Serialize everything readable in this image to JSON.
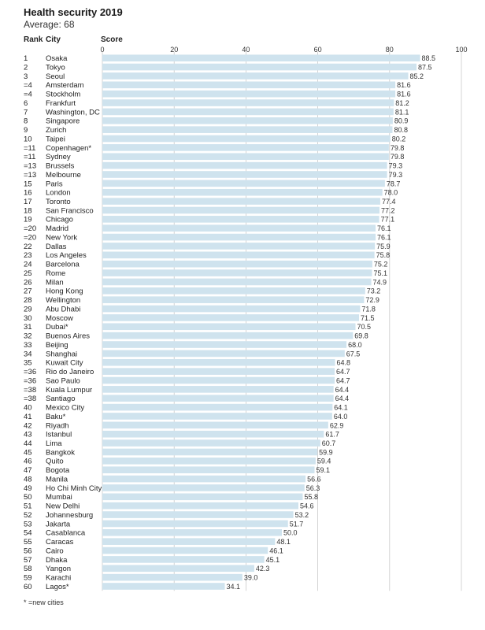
{
  "header": {
    "rank_label": "Rank",
    "city_label": "City",
    "score_label": "Score"
  },
  "footnote": "* =new cities",
  "colors": {
    "bar": "#cfe3ee",
    "grid": "#c9c9c9"
  },
  "chart_data": {
    "type": "bar",
    "orientation": "horizontal",
    "title": "Health security 2019",
    "subtitle": "Average: 68",
    "xlim": [
      0,
      100
    ],
    "x_ticks": [
      0,
      20,
      40,
      60,
      80,
      100
    ],
    "grid": true,
    "ranks": [
      "1",
      "2",
      "3",
      "=4",
      "=4",
      "6",
      "7",
      "8",
      "9",
      "10",
      "=11",
      "=11",
      "=13",
      "=13",
      "15",
      "16",
      "17",
      "18",
      "19",
      "=20",
      "=20",
      "22",
      "23",
      "24",
      "25",
      "26",
      "27",
      "28",
      "29",
      "30",
      "31",
      "32",
      "33",
      "34",
      "35",
      "=36",
      "=36",
      "=38",
      "=38",
      "40",
      "41",
      "42",
      "43",
      "44",
      "45",
      "46",
      "47",
      "48",
      "49",
      "50",
      "51",
      "52",
      "53",
      "54",
      "55",
      "56",
      "57",
      "58",
      "59",
      "60"
    ],
    "categories": [
      "Osaka",
      "Tokyo",
      "Seoul",
      "Amsterdam",
      "Stockholm",
      "Frankfurt",
      "Washington, DC",
      "Singapore",
      "Zurich",
      "Taipei",
      "Copenhagen*",
      "Sydney",
      "Brussels",
      "Melbourne",
      "Paris",
      "London",
      "Toronto",
      "San Francisco",
      "Chicago",
      "Madrid",
      "New York",
      "Dallas",
      "Los Angeles",
      "Barcelona",
      "Rome",
      "Milan",
      "Hong Kong",
      "Wellington",
      "Abu Dhabi",
      "Moscow",
      "Dubai*",
      "Buenos Aires",
      "Beijing",
      "Shanghai",
      "Kuwait City",
      "Rio do Janeiro",
      "Sao Paulo",
      "Kuala Lumpur",
      "Santiago",
      "Mexico City",
      "Baku*",
      "Riyadh",
      "Istanbul",
      "Lima",
      "Bangkok",
      "Quito",
      "Bogota",
      "Manila",
      "Ho Chi Minh City",
      "Mumbai",
      "New Delhi",
      "Johannesburg",
      "Jakarta",
      "Casablanca",
      "Caracas",
      "Cairo",
      "Dhaka",
      "Yangon",
      "Karachi",
      "Lagos*"
    ],
    "values": [
      88.5,
      87.5,
      85.2,
      81.6,
      81.6,
      81.2,
      81.1,
      80.9,
      80.8,
      80.2,
      79.8,
      79.8,
      79.3,
      79.3,
      78.7,
      78.0,
      77.4,
      77.2,
      77.1,
      76.1,
      76.1,
      75.9,
      75.8,
      75.2,
      75.1,
      74.9,
      73.2,
      72.9,
      71.8,
      71.5,
      70.5,
      69.8,
      68.0,
      67.5,
      64.8,
      64.7,
      64.7,
      64.4,
      64.4,
      64.1,
      64.0,
      62.9,
      61.7,
      60.7,
      59.9,
      59.4,
      59.1,
      56.6,
      56.3,
      55.8,
      54.6,
      53.2,
      51.7,
      50.0,
      48.1,
      46.1,
      45.1,
      42.3,
      39.0,
      34.1
    ],
    "value_labels": [
      "88.5",
      "87.5",
      "85.2",
      "81.6",
      "81.6",
      "81.2",
      "81.1",
      "80.9",
      "80.8",
      "80.2",
      "79.8",
      "79.8",
      "79.3",
      "79.3",
      "78.7",
      "78.0",
      "77.4",
      "77.2",
      "77.1",
      "76.1",
      "76.1",
      "75.9",
      "75.8",
      "75.2",
      "75.1",
      "74.9",
      "73.2",
      "72.9",
      "71.8",
      "71.5",
      "70.5",
      "69.8",
      "68.0",
      "67.5",
      "64.8",
      "64.7",
      "64.7",
      "64.4",
      "64.4",
      "64.1",
      "64.0",
      "62.9",
      "61.7",
      "60.7",
      "59.9",
      "59.4",
      "59.1",
      "56.6",
      "56.3",
      "55.8",
      "54.6",
      "53.2",
      "51.7",
      "50.0",
      "48.1",
      "46.1",
      "45.1",
      "42.3",
      "39.0",
      "34.1"
    ]
  }
}
